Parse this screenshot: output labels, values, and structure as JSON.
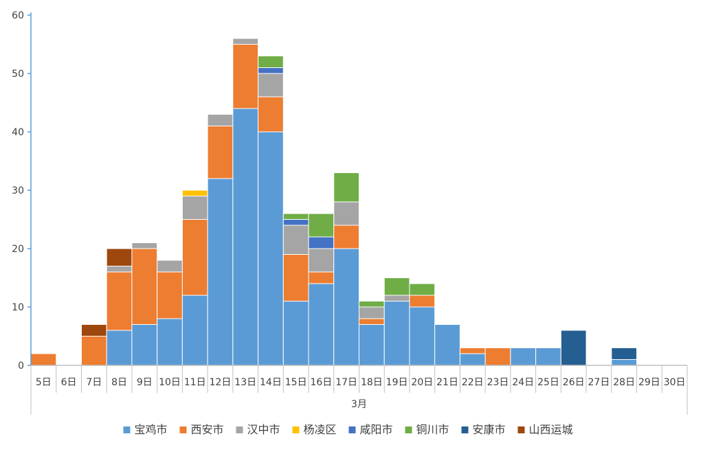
{
  "chart_data": {
    "type": "bar",
    "stacked": true,
    "categories": [
      "5日",
      "6日",
      "7日",
      "8日",
      "9日",
      "10日",
      "11日",
      "12日",
      "13日",
      "14日",
      "15日",
      "16日",
      "17日",
      "18日",
      "19日",
      "20日",
      "21日",
      "22日",
      "23日",
      "24日",
      "25日",
      "26日",
      "27日",
      "28日",
      "29日",
      "30日"
    ],
    "group_label": "3月",
    "ylim": [
      0,
      60
    ],
    "yticks": [
      0,
      10,
      20,
      30,
      40,
      50,
      60
    ],
    "grid": false,
    "legend_position": "bottom",
    "series": [
      {
        "name": "宝鸡市",
        "color": "#5B9BD5",
        "values": [
          0,
          0,
          0,
          6,
          7,
          8,
          12,
          32,
          44,
          40,
          11,
          14,
          20,
          7,
          11,
          10,
          7,
          2,
          0,
          3,
          3,
          0,
          0,
          1,
          0,
          0
        ]
      },
      {
        "name": "西安市",
        "color": "#ED7D31",
        "values": [
          2,
          0,
          5,
          10,
          13,
          8,
          13,
          9,
          11,
          6,
          8,
          2,
          4,
          1,
          0,
          2,
          0,
          1,
          3,
          0,
          0,
          0,
          0,
          0,
          0,
          0
        ]
      },
      {
        "name": "汉中市",
        "color": "#A5A5A5",
        "values": [
          0,
          0,
          0,
          1,
          1,
          2,
          4,
          2,
          1,
          4,
          5,
          4,
          4,
          2,
          1,
          0,
          0,
          0,
          0,
          0,
          0,
          0,
          0,
          0,
          0,
          0
        ]
      },
      {
        "name": "杨凌区",
        "color": "#FFC000",
        "values": [
          0,
          0,
          0,
          0,
          0,
          0,
          1,
          0,
          0,
          0,
          0,
          0,
          0,
          0,
          0,
          0,
          0,
          0,
          0,
          0,
          0,
          0,
          0,
          0,
          0,
          0
        ]
      },
      {
        "name": "咸阳市",
        "color": "#4472C4",
        "values": [
          0,
          0,
          0,
          0,
          0,
          0,
          0,
          0,
          0,
          1,
          1,
          2,
          0,
          0,
          0,
          0,
          0,
          0,
          0,
          0,
          0,
          0,
          0,
          0,
          0,
          0
        ]
      },
      {
        "name": "铜川市",
        "color": "#70AD47",
        "values": [
          0,
          0,
          0,
          0,
          0,
          0,
          0,
          0,
          0,
          2,
          1,
          4,
          5,
          1,
          3,
          2,
          0,
          0,
          0,
          0,
          0,
          0,
          0,
          0,
          0,
          0
        ]
      },
      {
        "name": "安康市",
        "color": "#255E91",
        "values": [
          0,
          0,
          0,
          0,
          0,
          0,
          0,
          0,
          0,
          0,
          0,
          0,
          0,
          0,
          0,
          0,
          0,
          0,
          0,
          0,
          0,
          6,
          0,
          2,
          0,
          0
        ]
      },
      {
        "name": "山西运城",
        "color": "#9E480E",
        "values": [
          0,
          0,
          2,
          3,
          0,
          0,
          0,
          0,
          0,
          0,
          0,
          0,
          0,
          0,
          0,
          0,
          0,
          0,
          0,
          0,
          0,
          0,
          0,
          0,
          0,
          0
        ]
      }
    ],
    "axis_color": "#5B9BD5",
    "label_color": "#404040"
  }
}
